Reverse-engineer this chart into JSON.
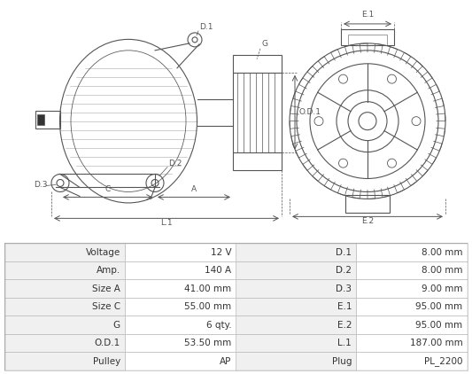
{
  "title": "",
  "bg_color": "#ffffff",
  "table_header_bg": "#d0d0d0",
  "table_row_bg1": "#f0f0f0",
  "table_row_bg2": "#ffffff",
  "table_data": [
    [
      "Voltage",
      "12 V",
      "D.1",
      "8.00 mm"
    ],
    [
      "Amp.",
      "140 A",
      "D.2",
      "8.00 mm"
    ],
    [
      "Size A",
      "41.00 mm",
      "D.3",
      "9.00 mm"
    ],
    [
      "Size C",
      "55.00 mm",
      "E.1",
      "95.00 mm"
    ],
    [
      "G",
      "6 qty.",
      "E.2",
      "95.00 mm"
    ],
    [
      "O.D.1",
      "53.50 mm",
      "L.1",
      "187.00 mm"
    ],
    [
      "Pulley",
      "AP",
      "Plug",
      "PL_2200"
    ]
  ],
  "diagram_bg": "#f7f7f7",
  "line_color": "#555555",
  "dim_color": "#555555",
  "font_size_table": 7.5,
  "font_size_label": 6.5
}
